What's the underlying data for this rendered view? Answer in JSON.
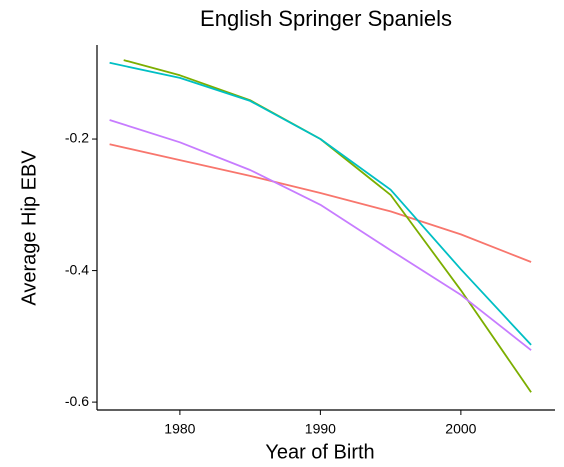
{
  "chart_data": {
    "type": "line",
    "title": "English Springer Spaniels",
    "xlabel": "Year of Birth",
    "ylabel": "Average Hip EBV",
    "series": [
      {
        "color": "#F8766D",
        "x": [
          1975,
          1980,
          1985,
          1990,
          1995,
          2000,
          2005
        ],
        "values": [
          -0.208,
          -0.232,
          -0.256,
          -0.282,
          -0.31,
          -0.345,
          -0.387
        ]
      },
      {
        "color": "#7CAE00",
        "x": [
          1976,
          1980,
          1985,
          1990,
          1995,
          2000,
          2005
        ],
        "values": [
          -0.08,
          -0.103,
          -0.141,
          -0.2,
          -0.285,
          -0.43,
          -0.585
        ]
      },
      {
        "color": "#00BFC4",
        "x": [
          1975,
          1980,
          1985,
          1990,
          1995,
          2000,
          2005
        ],
        "values": [
          -0.084,
          -0.107,
          -0.142,
          -0.2,
          -0.277,
          -0.398,
          -0.513
        ]
      },
      {
        "color": "#C77CFF",
        "x": [
          1975,
          1980,
          1985,
          1990,
          1995,
          2000,
          2005
        ],
        "values": [
          -0.171,
          -0.205,
          -0.247,
          -0.3,
          -0.369,
          -0.437,
          -0.521
        ]
      }
    ],
    "xlim": [
      1974.1,
      2006.7
    ],
    "xticks": [
      1980,
      1990,
      2000
    ],
    "ylim": [
      -0.612,
      -0.057
    ],
    "yticks": [
      -0.2,
      -0.4,
      -0.6
    ]
  }
}
